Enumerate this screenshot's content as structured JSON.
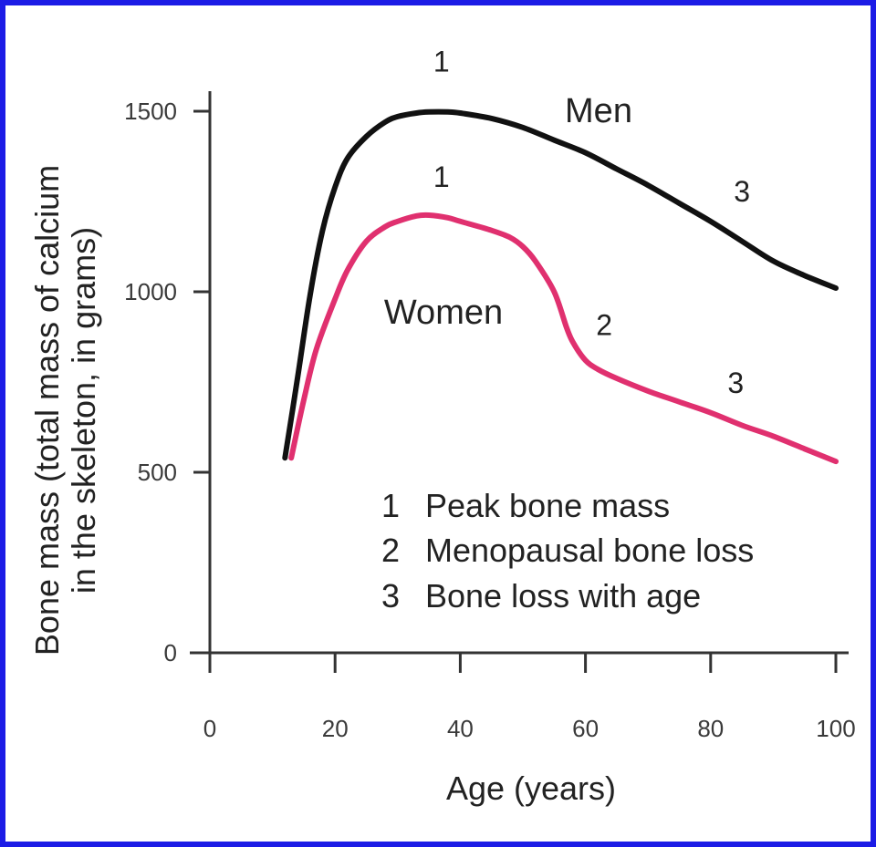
{
  "chart_data": {
    "type": "line",
    "title": "",
    "xlabel": "Age (years)",
    "ylabel": "Bone mass (total mass of calcium in the skeleton, in grams)",
    "ylabel_lines": [
      "Bone mass (total mass of calcium",
      "in the skeleton, in grams)"
    ],
    "xlim": [
      0,
      100
    ],
    "ylim": [
      0,
      1500
    ],
    "x_ticks": [
      0,
      20,
      40,
      60,
      80,
      100
    ],
    "y_ticks": [
      0,
      500,
      1000,
      1500
    ],
    "grid": false,
    "colors": {
      "frame": "#1c1ce6",
      "men": "#111111",
      "women": "#e0306f",
      "axis": "#333333"
    },
    "series": [
      {
        "name": "Men",
        "color": "#111111",
        "x": [
          12,
          14,
          16,
          18,
          20,
          22,
          25,
          28,
          30,
          33,
          35,
          38,
          40,
          45,
          50,
          55,
          60,
          65,
          70,
          75,
          80,
          85,
          90,
          95,
          100
        ],
        "y": [
          540,
          760,
          990,
          1170,
          1290,
          1370,
          1430,
          1470,
          1485,
          1495,
          1498,
          1498,
          1495,
          1480,
          1455,
          1420,
          1385,
          1340,
          1295,
          1245,
          1195,
          1140,
          1085,
          1045,
          1010
        ]
      },
      {
        "name": "Women",
        "color": "#e0306f",
        "x": [
          13,
          15,
          17,
          20,
          22,
          25,
          28,
          30,
          33,
          35,
          38,
          40,
          45,
          48,
          50,
          52,
          55,
          57,
          58,
          60,
          62,
          65,
          70,
          75,
          80,
          85,
          90,
          95,
          100
        ],
        "y": [
          540,
          700,
          840,
          980,
          1060,
          1140,
          1180,
          1195,
          1210,
          1212,
          1205,
          1195,
          1170,
          1150,
          1125,
          1085,
          1000,
          900,
          860,
          810,
          785,
          760,
          725,
          695,
          665,
          630,
          600,
          565,
          530
        ]
      }
    ],
    "annotations": [
      {
        "text": "1",
        "x": 37,
        "y": 1610
      },
      {
        "text": "1",
        "x": 37,
        "y": 1290
      },
      {
        "text": "2",
        "x": 63,
        "y": 880
      },
      {
        "text": "3",
        "x": 85,
        "y": 1250
      },
      {
        "text": "3",
        "x": 84,
        "y": 720
      }
    ],
    "legend": {
      "placement": "lower-center",
      "items": [
        {
          "num": "1",
          "text": "Peak bone mass"
        },
        {
          "num": "2",
          "text": "Menopausal bone loss"
        },
        {
          "num": "3",
          "text": "Bone loss with age"
        }
      ]
    }
  }
}
